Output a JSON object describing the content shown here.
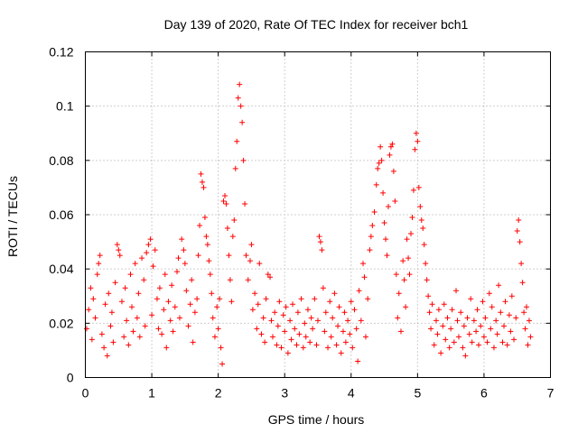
{
  "chart_data": {
    "type": "scatter",
    "title": "Day 139 of 2020, Rate Of TEC Index for receiver bch1",
    "xlabel": "GPS time / hours",
    "ylabel": "ROTI / TECUs",
    "xlim": [
      0,
      7
    ],
    "ylim": [
      0,
      0.12
    ],
    "x_ticks": [
      0,
      1,
      2,
      3,
      4,
      5,
      6,
      7
    ],
    "x_tick_labels": [
      "0",
      "1",
      "2",
      "3",
      "4",
      "5",
      "6",
      "7"
    ],
    "y_ticks": [
      0,
      0.02,
      0.04,
      0.06,
      0.08,
      0.1,
      0.12
    ],
    "y_tick_labels": [
      "0",
      "0.02",
      "0.04",
      "0.06",
      "0.08",
      "0.1",
      "0.12"
    ],
    "grid": true,
    "marker": "+",
    "color": "#ff0000",
    "series": [
      {
        "name": "ROTI",
        "points": [
          [
            0.02,
            0.018
          ],
          [
            0.05,
            0.025
          ],
          [
            0.08,
            0.033
          ],
          [
            0.1,
            0.014
          ],
          [
            0.12,
            0.029
          ],
          [
            0.15,
            0.022
          ],
          [
            0.18,
            0.038
          ],
          [
            0.2,
            0.042
          ],
          [
            0.22,
            0.045
          ],
          [
            0.25,
            0.016
          ],
          [
            0.28,
            0.011
          ],
          [
            0.3,
            0.027
          ],
          [
            0.33,
            0.008
          ],
          [
            0.35,
            0.031
          ],
          [
            0.38,
            0.019
          ],
          [
            0.4,
            0.024
          ],
          [
            0.42,
            0.013
          ],
          [
            0.45,
            0.035
          ],
          [
            0.48,
            0.049
          ],
          [
            0.5,
            0.047
          ],
          [
            0.52,
            0.045
          ],
          [
            0.55,
            0.028
          ],
          [
            0.58,
            0.015
          ],
          [
            0.6,
            0.033
          ],
          [
            0.62,
            0.021
          ],
          [
            0.65,
            0.012
          ],
          [
            0.68,
            0.038
          ],
          [
            0.7,
            0.026
          ],
          [
            0.72,
            0.017
          ],
          [
            0.75,
            0.042
          ],
          [
            0.78,
            0.022
          ],
          [
            0.8,
            0.031
          ],
          [
            0.82,
            0.015
          ],
          [
            0.85,
            0.044
          ],
          [
            0.88,
            0.036
          ],
          [
            0.9,
            0.019
          ],
          [
            0.92,
            0.046
          ],
          [
            0.95,
            0.049
          ],
          [
            0.98,
            0.051
          ],
          [
            1.0,
            0.023
          ],
          [
            1.02,
            0.041
          ],
          [
            1.05,
            0.047
          ],
          [
            1.08,
            0.029
          ],
          [
            1.1,
            0.018
          ],
          [
            1.12,
            0.033
          ],
          [
            1.15,
            0.016
          ],
          [
            1.18,
            0.025
          ],
          [
            1.2,
            0.038
          ],
          [
            1.22,
            0.011
          ],
          [
            1.25,
            0.028
          ],
          [
            1.28,
            0.021
          ],
          [
            1.3,
            0.034
          ],
          [
            1.32,
            0.017
          ],
          [
            1.35,
            0.026
          ],
          [
            1.38,
            0.039
          ],
          [
            1.4,
            0.044
          ],
          [
            1.42,
            0.022
          ],
          [
            1.45,
            0.051
          ],
          [
            1.48,
            0.047
          ],
          [
            1.5,
            0.042
          ],
          [
            1.52,
            0.032
          ],
          [
            1.55,
            0.019
          ],
          [
            1.58,
            0.027
          ],
          [
            1.6,
            0.036
          ],
          [
            1.62,
            0.013
          ],
          [
            1.65,
            0.024
          ],
          [
            1.68,
            0.029
          ],
          [
            1.7,
            0.045
          ],
          [
            1.72,
            0.056
          ],
          [
            1.74,
            0.075
          ],
          [
            1.76,
            0.072
          ],
          [
            1.78,
            0.07
          ],
          [
            1.8,
            0.059
          ],
          [
            1.82,
            0.052
          ],
          [
            1.84,
            0.049
          ],
          [
            1.86,
            0.043
          ],
          [
            1.88,
            0.038
          ],
          [
            1.9,
            0.031
          ],
          [
            1.92,
            0.022
          ],
          [
            1.95,
            0.015
          ],
          [
            1.98,
            0.026
          ],
          [
            2.0,
            0.018
          ],
          [
            2.02,
            0.029
          ],
          [
            2.04,
            0.011
          ],
          [
            2.06,
            0.005
          ],
          [
            2.08,
            0.065
          ],
          [
            2.1,
            0.067
          ],
          [
            2.12,
            0.064
          ],
          [
            2.14,
            0.055
          ],
          [
            2.16,
            0.045
          ],
          [
            2.18,
            0.036
          ],
          [
            2.2,
            0.028
          ],
          [
            2.22,
            0.052
          ],
          [
            2.24,
            0.058
          ],
          [
            2.26,
            0.077
          ],
          [
            2.28,
            0.087
          ],
          [
            2.3,
            0.103
          ],
          [
            2.32,
            0.108
          ],
          [
            2.34,
            0.1
          ],
          [
            2.36,
            0.094
          ],
          [
            2.38,
            0.08
          ],
          [
            2.4,
            0.064
          ],
          [
            2.42,
            0.045
          ],
          [
            2.45,
            0.036
          ],
          [
            2.48,
            0.043
          ],
          [
            2.5,
            0.049
          ],
          [
            2.52,
            0.025
          ],
          [
            2.55,
            0.031
          ],
          [
            2.58,
            0.018
          ],
          [
            2.6,
            0.027
          ],
          [
            2.62,
            0.042
          ],
          [
            2.65,
            0.016
          ],
          [
            2.68,
            0.022
          ],
          [
            2.7,
            0.013
          ],
          [
            2.72,
            0.029
          ],
          [
            2.75,
            0.038
          ],
          [
            2.78,
            0.037
          ],
          [
            2.8,
            0.021
          ],
          [
            2.82,
            0.015
          ],
          [
            2.85,
            0.024
          ],
          [
            2.88,
            0.012
          ],
          [
            2.9,
            0.019
          ],
          [
            2.92,
            0.028
          ],
          [
            2.95,
            0.011
          ],
          [
            2.98,
            0.023
          ],
          [
            3.0,
            0.017
          ],
          [
            3.02,
            0.026
          ],
          [
            3.05,
            0.009
          ],
          [
            3.08,
            0.021
          ],
          [
            3.1,
            0.014
          ],
          [
            3.12,
            0.027
          ],
          [
            3.15,
            0.018
          ],
          [
            3.18,
            0.012
          ],
          [
            3.2,
            0.024
          ],
          [
            3.22,
            0.016
          ],
          [
            3.25,
            0.029
          ],
          [
            3.28,
            0.011
          ],
          [
            3.3,
            0.02
          ],
          [
            3.32,
            0.015
          ],
          [
            3.35,
            0.025
          ],
          [
            3.38,
            0.013
          ],
          [
            3.4,
            0.022
          ],
          [
            3.42,
            0.018
          ],
          [
            3.45,
            0.029
          ],
          [
            3.48,
            0.012
          ],
          [
            3.5,
            0.021
          ],
          [
            3.52,
            0.052
          ],
          [
            3.54,
            0.05
          ],
          [
            3.56,
            0.047
          ],
          [
            3.58,
            0.033
          ],
          [
            3.6,
            0.017
          ],
          [
            3.62,
            0.024
          ],
          [
            3.65,
            0.011
          ],
          [
            3.68,
            0.028
          ],
          [
            3.7,
            0.015
          ],
          [
            3.72,
            0.022
          ],
          [
            3.75,
            0.031
          ],
          [
            3.78,
            0.012
          ],
          [
            3.8,
            0.019
          ],
          [
            3.82,
            0.026
          ],
          [
            3.85,
            0.009
          ],
          [
            3.88,
            0.017
          ],
          [
            3.9,
            0.024
          ],
          [
            3.92,
            0.013
          ],
          [
            3.95,
            0.021
          ],
          [
            3.98,
            0.016
          ],
          [
            4.0,
            0.028
          ],
          [
            4.02,
            0.011
          ],
          [
            4.05,
            0.025
          ],
          [
            4.08,
            0.018
          ],
          [
            4.1,
            0.006
          ],
          [
            4.12,
            0.032
          ],
          [
            4.15,
            0.021
          ],
          [
            4.18,
            0.042
          ],
          [
            4.2,
            0.037
          ],
          [
            4.22,
            0.015
          ],
          [
            4.25,
            0.029
          ],
          [
            4.28,
            0.047
          ],
          [
            4.3,
            0.052
          ],
          [
            4.32,
            0.056
          ],
          [
            4.35,
            0.061
          ],
          [
            4.38,
            0.071
          ],
          [
            4.4,
            0.077
          ],
          [
            4.42,
            0.079
          ],
          [
            4.44,
            0.085
          ],
          [
            4.46,
            0.08
          ],
          [
            4.48,
            0.068
          ],
          [
            4.5,
            0.057
          ],
          [
            4.52,
            0.051
          ],
          [
            4.54,
            0.045
          ],
          [
            4.56,
            0.063
          ],
          [
            4.58,
            0.082
          ],
          [
            4.6,
            0.085
          ],
          [
            4.62,
            0.086
          ],
          [
            4.64,
            0.076
          ],
          [
            4.66,
            0.065
          ],
          [
            4.68,
            0.038
          ],
          [
            4.7,
            0.022
          ],
          [
            4.72,
            0.031
          ],
          [
            4.75,
            0.017
          ],
          [
            4.78,
            0.043
          ],
          [
            4.8,
            0.036
          ],
          [
            4.82,
            0.026
          ],
          [
            4.84,
            0.051
          ],
          [
            4.86,
            0.044
          ],
          [
            4.88,
            0.038
          ],
          [
            4.9,
            0.053
          ],
          [
            4.92,
            0.059
          ],
          [
            4.94,
            0.069
          ],
          [
            4.96,
            0.084
          ],
          [
            4.98,
            0.09
          ],
          [
            5.0,
            0.087
          ],
          [
            5.02,
            0.07
          ],
          [
            5.04,
            0.063
          ],
          [
            5.06,
            0.058
          ],
          [
            5.08,
            0.055
          ],
          [
            5.1,
            0.049
          ],
          [
            5.12,
            0.042
          ],
          [
            5.14,
            0.036
          ],
          [
            5.16,
            0.03
          ],
          [
            5.18,
            0.024
          ],
          [
            5.2,
            0.018
          ],
          [
            5.22,
            0.027
          ],
          [
            5.25,
            0.012
          ],
          [
            5.28,
            0.021
          ],
          [
            5.3,
            0.016
          ],
          [
            5.32,
            0.025
          ],
          [
            5.35,
            0.009
          ],
          [
            5.38,
            0.019
          ],
          [
            5.4,
            0.027
          ],
          [
            5.42,
            0.014
          ],
          [
            5.45,
            0.022
          ],
          [
            5.48,
            0.011
          ],
          [
            5.5,
            0.018
          ],
          [
            5.52,
            0.025
          ],
          [
            5.55,
            0.013
          ],
          [
            5.58,
            0.032
          ],
          [
            5.6,
            0.021
          ],
          [
            5.62,
            0.015
          ],
          [
            5.65,
            0.024
          ],
          [
            5.68,
            0.011
          ],
          [
            5.7,
            0.019
          ],
          [
            5.72,
            0.008
          ],
          [
            5.75,
            0.022
          ],
          [
            5.78,
            0.016
          ],
          [
            5.8,
            0.029
          ],
          [
            5.82,
            0.013
          ],
          [
            5.85,
            0.021
          ],
          [
            5.88,
            0.017
          ],
          [
            5.9,
            0.025
          ],
          [
            5.92,
            0.012
          ],
          [
            5.95,
            0.019
          ],
          [
            5.98,
            0.028
          ],
          [
            6.0,
            0.015
          ],
          [
            6.02,
            0.022
          ],
          [
            6.05,
            0.013
          ],
          [
            6.08,
            0.031
          ],
          [
            6.1,
            0.018
          ],
          [
            6.12,
            0.026
          ],
          [
            6.15,
            0.011
          ],
          [
            6.18,
            0.021
          ],
          [
            6.2,
            0.016
          ],
          [
            6.22,
            0.034
          ],
          [
            6.25,
            0.024
          ],
          [
            6.28,
            0.013
          ],
          [
            6.3,
            0.019
          ],
          [
            6.32,
            0.028
          ],
          [
            6.35,
            0.012
          ],
          [
            6.38,
            0.023
          ],
          [
            6.4,
            0.017
          ],
          [
            6.42,
            0.03
          ],
          [
            6.45,
            0.014
          ],
          [
            6.48,
            0.022
          ],
          [
            6.5,
            0.054
          ],
          [
            6.52,
            0.058
          ],
          [
            6.54,
            0.05
          ],
          [
            6.56,
            0.042
          ],
          [
            6.58,
            0.035
          ],
          [
            6.6,
            0.024
          ],
          [
            6.62,
            0.018
          ],
          [
            6.64,
            0.026
          ],
          [
            6.66,
            0.012
          ],
          [
            6.68,
            0.021
          ],
          [
            6.7,
            0.015
          ]
        ]
      }
    ]
  }
}
